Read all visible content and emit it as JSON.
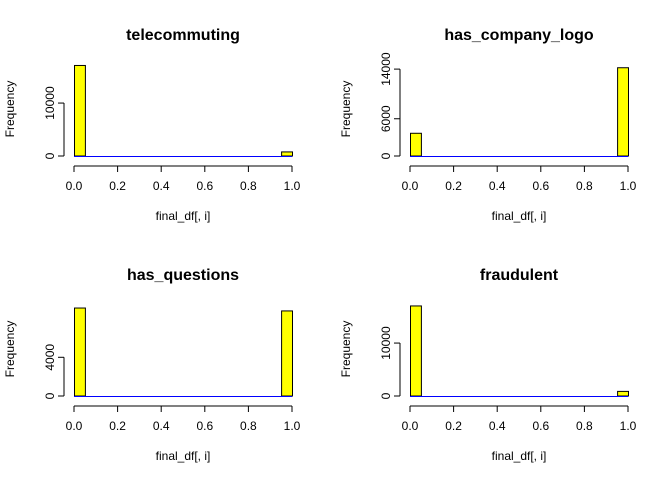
{
  "colors": {
    "bar_fill": "#ffff00",
    "bar_stroke": "#000000",
    "baseline": "#0000ff",
    "axis": "#000000",
    "background": "#ffffff"
  },
  "chart_data": [
    {
      "type": "bar",
      "title": "telecommuting",
      "xlabel": "final_df[, i]",
      "ylabel": "Frequency",
      "xlim": [
        0,
        1
      ],
      "ylim": [
        0,
        17000
      ],
      "x_ticks": [
        "0.0",
        "0.2",
        "0.4",
        "0.6",
        "0.8",
        "1.0"
      ],
      "y_ticks": [
        {
          "value": 0,
          "label": "0"
        },
        {
          "value": 10000,
          "label": "10000"
        }
      ],
      "bins": [
        {
          "from": 0.0,
          "to": 0.05,
          "value": 17100
        },
        {
          "from": 0.95,
          "to": 1.0,
          "value": 770
        }
      ]
    },
    {
      "type": "bar",
      "title": "has_company_logo",
      "xlabel": "final_df[, i]",
      "ylabel": "Frequency",
      "xlim": [
        0,
        1
      ],
      "ylim": [
        0,
        14500
      ],
      "x_ticks": [
        "0.0",
        "0.2",
        "0.4",
        "0.6",
        "0.8",
        "1.0"
      ],
      "y_ticks": [
        {
          "value": 0,
          "label": "0"
        },
        {
          "value": 6000,
          "label": "6000"
        },
        {
          "value": 14000,
          "label": "14000"
        }
      ],
      "bins": [
        {
          "from": 0.0,
          "to": 0.05,
          "value": 3660
        },
        {
          "from": 0.95,
          "to": 1.0,
          "value": 14220
        }
      ]
    },
    {
      "type": "bar",
      "title": "has_questions",
      "xlabel": "final_df[, i]",
      "ylabel": "Frequency",
      "xlim": [
        0,
        1
      ],
      "ylim": [
        0,
        9300
      ],
      "x_ticks": [
        "0.0",
        "0.2",
        "0.4",
        "0.6",
        "0.8",
        "1.0"
      ],
      "y_ticks": [
        {
          "value": 0,
          "label": "0"
        },
        {
          "value": 4000,
          "label": "4000"
        }
      ],
      "bins": [
        {
          "from": 0.0,
          "to": 0.05,
          "value": 9090
        },
        {
          "from": 0.95,
          "to": 1.0,
          "value": 8790
        }
      ]
    },
    {
      "type": "bar",
      "title": "fraudulent",
      "xlabel": "final_df[, i]",
      "ylabel": "Frequency",
      "xlim": [
        0,
        1
      ],
      "ylim": [
        0,
        17000
      ],
      "x_ticks": [
        "0.0",
        "0.2",
        "0.4",
        "0.6",
        "0.8",
        "1.0"
      ],
      "y_ticks": [
        {
          "value": 0,
          "label": "0"
        },
        {
          "value": 10000,
          "label": "10000"
        }
      ],
      "bins": [
        {
          "from": 0.0,
          "to": 0.05,
          "value": 17010
        },
        {
          "from": 0.95,
          "to": 1.0,
          "value": 870
        }
      ]
    }
  ]
}
